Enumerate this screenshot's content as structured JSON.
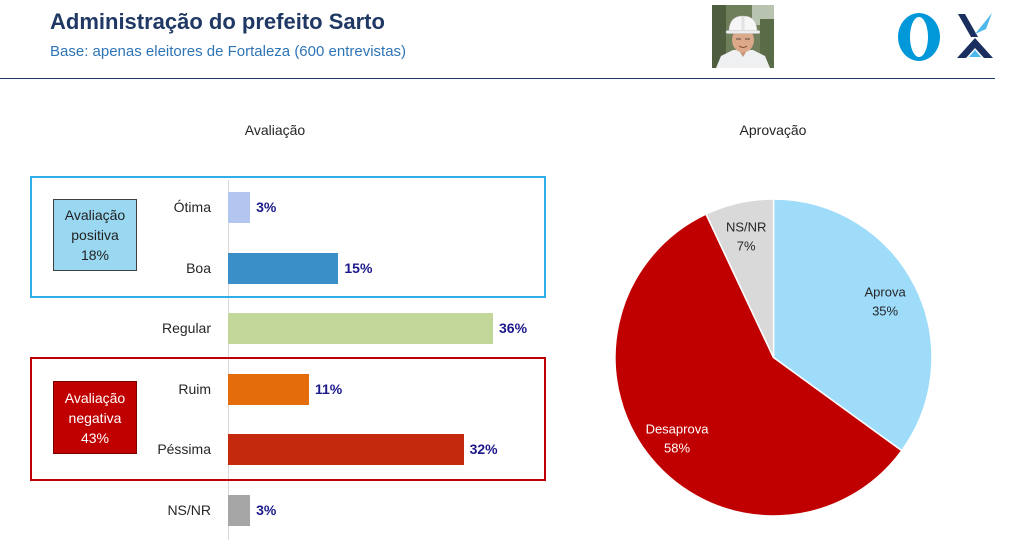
{
  "header": {
    "title": "Administração do prefeito Sarto",
    "subtitle": "Base: apenas eleitores de Fortaleza (600 entrevistas)"
  },
  "logos": {
    "lettering": "O",
    "brand_blue": "#0098d8",
    "brand_light_blue": "#4fb8ea",
    "brand_navy": "#1b2f5e",
    "icons": [
      "portrait-photo",
      "brand-o-logo",
      "brand-x-logo-icon"
    ]
  },
  "chart_data": [
    {
      "type": "bar",
      "orientation": "horizontal",
      "title": "Avaliação",
      "categories": [
        "Ótima",
        "Boa",
        "Regular",
        "Ruim",
        "Péssima",
        "NS/NR"
      ],
      "values": [
        3,
        15,
        36,
        11,
        32,
        3
      ],
      "value_labels": [
        "3%",
        "15%",
        "36%",
        "11%",
        "32%",
        "3%"
      ],
      "colors": [
        "#b2c6ef",
        "#3a8fc8",
        "#c4d79b",
        "#e46c0a",
        "#c4290e",
        "#a6a6a6"
      ],
      "groups": [
        {
          "lines": [
            "Avaliação",
            "positiva",
            "18%"
          ],
          "border_color": "#2eaee4",
          "box_color": "#9ad8f2",
          "text_color": "#1f1f1f"
        },
        {
          "lines": [
            "Avaliação",
            "negativa",
            "43%"
          ],
          "border_color": "#c00000",
          "box_color": "#c00000",
          "text_color": "#ffffff"
        }
      ]
    },
    {
      "type": "pie",
      "title": "Aprovação",
      "slices": [
        {
          "label": "Aprova",
          "value": 35,
          "value_label": "35%",
          "color": "#9edcfa",
          "label_color": "#262626"
        },
        {
          "label": "Desaprova",
          "value": 58,
          "value_label": "58%",
          "color": "#c00000",
          "label_color": "#ffffff"
        },
        {
          "label": "NS/NR",
          "value": 7,
          "value_label": "7%",
          "color": "#d9d9d9",
          "label_color": "#262626"
        }
      ]
    }
  ]
}
